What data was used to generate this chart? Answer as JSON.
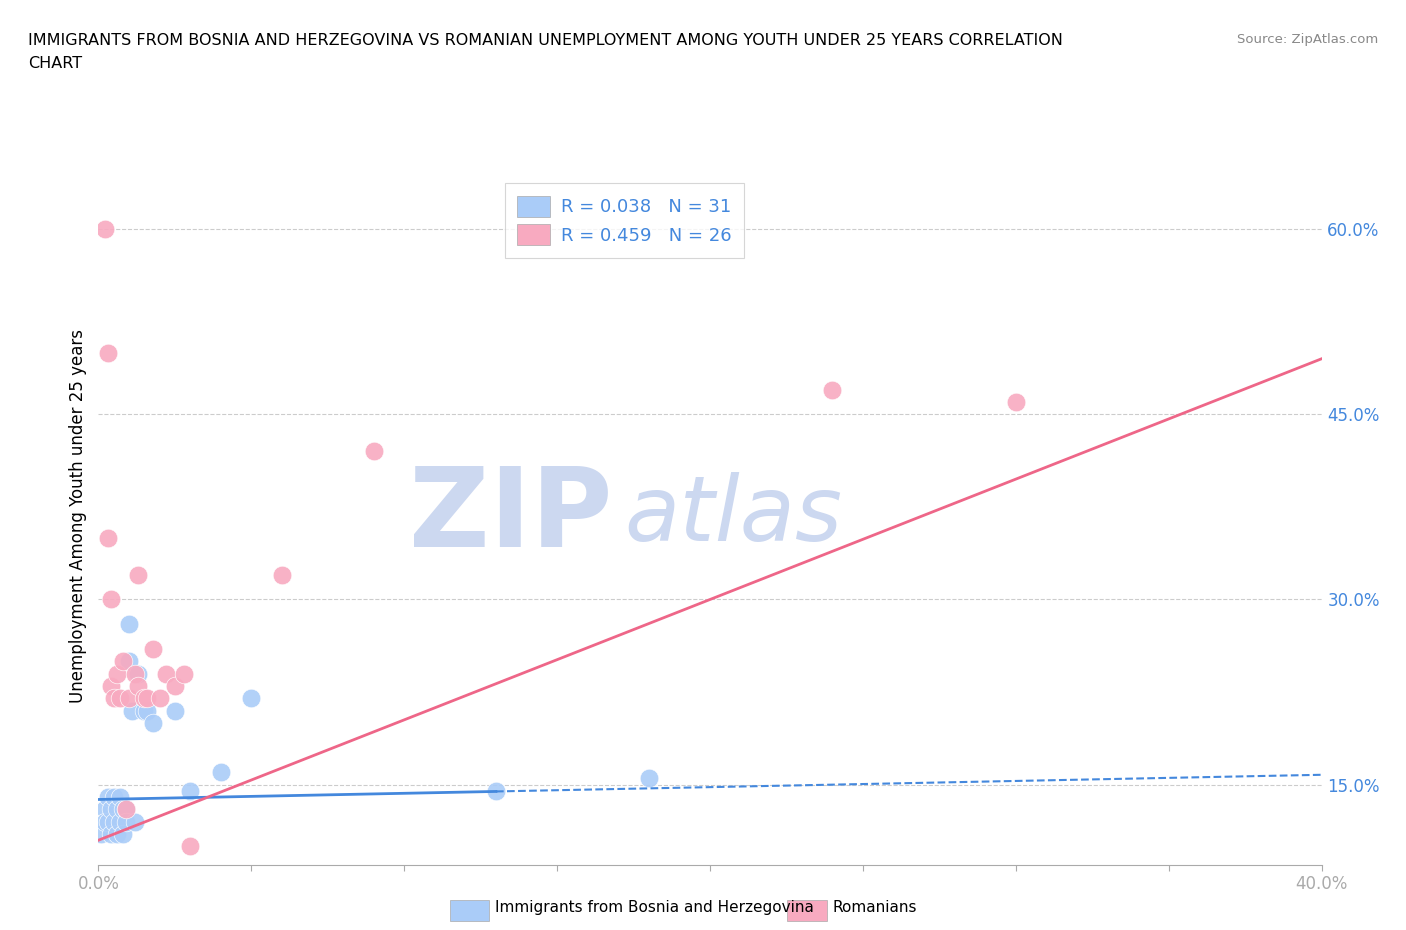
{
  "title_line1": "IMMIGRANTS FROM BOSNIA AND HERZEGOVINA VS ROMANIAN UNEMPLOYMENT AMONG YOUTH UNDER 25 YEARS CORRELATION",
  "title_line2": "CHART",
  "source": "Source: ZipAtlas.com",
  "ylabel": "Unemployment Among Youth under 25 years",
  "xlim": [
    0.0,
    0.4
  ],
  "ylim": [
    0.085,
    0.65
  ],
  "x_ticks": [
    0.0,
    0.05,
    0.1,
    0.15,
    0.2,
    0.25,
    0.3,
    0.35,
    0.4
  ],
  "y_tick_right": [
    0.15,
    0.3,
    0.45,
    0.6
  ],
  "y_tick_right_labels": [
    "15.0%",
    "30.0%",
    "45.0%",
    "60.0%"
  ],
  "bosnia_color": "#aaccf8",
  "romanian_color": "#f8aac0",
  "bosnia_R": 0.038,
  "bosnia_N": 31,
  "romanian_R": 0.459,
  "romanian_N": 26,
  "trend_blue": "#4488dd",
  "trend_pink": "#ee6688",
  "watermark_zip": "ZIP",
  "watermark_atlas": "atlas",
  "watermark_color": "#ccd8f0",
  "legend_label_bosnia": "Immigrants from Bosnia and Herzegovina",
  "legend_label_romanian": "Romanians",
  "bosnia_x": [
    0.001,
    0.002,
    0.002,
    0.003,
    0.003,
    0.004,
    0.004,
    0.005,
    0.005,
    0.006,
    0.006,
    0.007,
    0.007,
    0.008,
    0.008,
    0.009,
    0.009,
    0.01,
    0.01,
    0.011,
    0.012,
    0.013,
    0.015,
    0.016,
    0.018,
    0.025,
    0.03,
    0.04,
    0.05,
    0.13,
    0.18
  ],
  "bosnia_y": [
    0.11,
    0.13,
    0.12,
    0.14,
    0.12,
    0.13,
    0.11,
    0.14,
    0.12,
    0.13,
    0.11,
    0.14,
    0.12,
    0.13,
    0.11,
    0.13,
    0.12,
    0.28,
    0.25,
    0.21,
    0.12,
    0.24,
    0.21,
    0.21,
    0.2,
    0.21,
    0.145,
    0.16,
    0.22,
    0.145,
    0.155
  ],
  "romanian_x": [
    0.002,
    0.003,
    0.004,
    0.005,
    0.006,
    0.007,
    0.008,
    0.009,
    0.01,
    0.012,
    0.013,
    0.015,
    0.016,
    0.018,
    0.02,
    0.022,
    0.025,
    0.028,
    0.03,
    0.06,
    0.09,
    0.24,
    0.3,
    0.003,
    0.004,
    0.013
  ],
  "romanian_y": [
    0.6,
    0.5,
    0.23,
    0.22,
    0.24,
    0.22,
    0.25,
    0.13,
    0.22,
    0.24,
    0.23,
    0.22,
    0.22,
    0.26,
    0.22,
    0.24,
    0.23,
    0.24,
    0.1,
    0.32,
    0.42,
    0.47,
    0.46,
    0.35,
    0.3,
    0.32
  ],
  "grid_color": "#cccccc",
  "bg_color": "#ffffff",
  "bosnia_trend_solid_end": 0.13,
  "blue_trend_y0": 0.138,
  "blue_trend_y1": 0.158,
  "pink_trend_y0": 0.105,
  "pink_trend_y1": 0.495
}
